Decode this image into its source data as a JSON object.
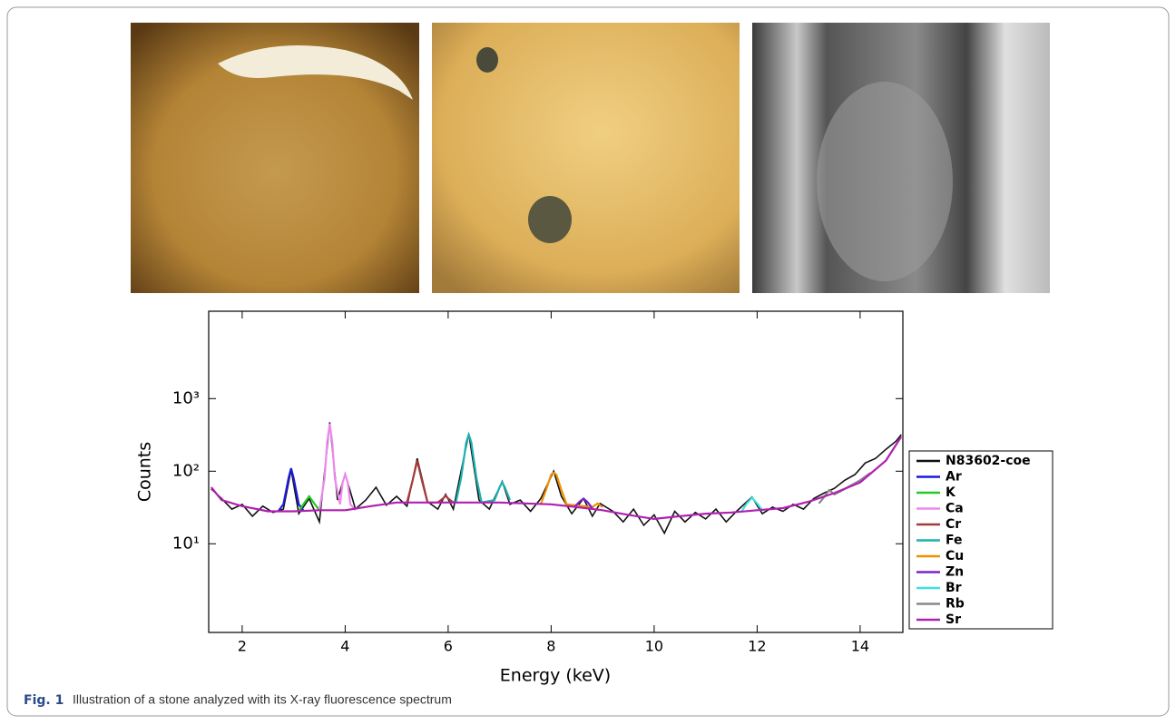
{
  "caption": {
    "label": "Fig. 1",
    "text": "Illustration of a stone analyzed with its X-ray fluorescence spectrum"
  },
  "chart_data": {
    "type": "line",
    "xlabel": "Energy (keV)",
    "ylabel": "Counts",
    "xlim": [
      1.35,
      14.83
    ],
    "xticks": [
      2,
      4,
      6,
      8,
      10,
      12,
      14
    ],
    "ylim": [
      0.6,
      16000
    ],
    "ylog": true,
    "yticks": [
      {
        "value": 10,
        "label": "10¹"
      },
      {
        "value": 100,
        "label": "10²"
      },
      {
        "value": 1000,
        "label": "10³"
      }
    ],
    "legend": "right",
    "series": [
      {
        "name": "N83602-coe",
        "color": "#111111",
        "x": [
          1.4,
          1.6,
          1.8,
          2.0,
          2.2,
          2.4,
          2.6,
          2.8,
          2.95,
          3.1,
          3.3,
          3.5,
          3.7,
          3.85,
          4.0,
          4.2,
          4.4,
          4.6,
          4.8,
          5.0,
          5.2,
          5.4,
          5.6,
          5.8,
          5.95,
          6.1,
          6.4,
          6.6,
          6.8,
          7.05,
          7.2,
          7.4,
          7.6,
          7.8,
          8.05,
          8.2,
          8.4,
          8.63,
          8.8,
          8.95,
          9.2,
          9.4,
          9.6,
          9.8,
          10.0,
          10.2,
          10.4,
          10.6,
          10.8,
          11.0,
          11.2,
          11.4,
          11.6,
          11.9,
          12.1,
          12.3,
          12.5,
          12.7,
          12.9,
          13.1,
          13.3,
          13.5,
          13.7,
          13.9,
          14.1,
          14.3,
          14.5,
          14.7,
          14.8
        ],
        "values": [
          57,
          42,
          30,
          35,
          24,
          33,
          27,
          30,
          105,
          26,
          42,
          20,
          470,
          40,
          92,
          30,
          40,
          60,
          34,
          45,
          33,
          150,
          38,
          30,
          48,
          30,
          330,
          40,
          30,
          72,
          35,
          40,
          28,
          42,
          100,
          45,
          26,
          42,
          24,
          36,
          28,
          20,
          30,
          18,
          25,
          14,
          28,
          20,
          27,
          22,
          30,
          20,
          28,
          44,
          26,
          32,
          28,
          35,
          30,
          42,
          50,
          58,
          75,
          90,
          130,
          150,
          200,
          260,
          320
        ]
      },
      {
        "name": "Ar",
        "color": "#1c1cd8",
        "x": [
          2.7,
          2.8,
          2.9,
          2.95,
          3.0,
          3.1,
          3.2
        ],
        "values": [
          28,
          35,
          80,
          110,
          80,
          35,
          28
        ]
      },
      {
        "name": "K",
        "color": "#22cc22",
        "x": [
          3.1,
          3.2,
          3.3,
          3.4,
          3.5
        ],
        "values": [
          28,
          36,
          45,
          36,
          29
        ]
      },
      {
        "name": "Ca",
        "color": "#ee88ee",
        "x": [
          3.5,
          3.6,
          3.65,
          3.7,
          3.75,
          3.8,
          3.9,
          3.95,
          4.0,
          4.05,
          4.1,
          4.2
        ],
        "values": [
          29,
          80,
          250,
          450,
          250,
          80,
          35,
          70,
          90,
          70,
          35,
          29
        ]
      },
      {
        "name": "Cr",
        "color": "#a63a3a",
        "x": [
          5.2,
          5.3,
          5.4,
          5.5,
          5.6,
          5.8,
          5.9,
          5.95,
          6.0,
          6.1
        ],
        "values": [
          37,
          70,
          140,
          70,
          37,
          37,
          42,
          46,
          42,
          37
        ]
      },
      {
        "name": "Fe",
        "color": "#1fb0b0",
        "x": [
          6.15,
          6.25,
          6.35,
          6.4,
          6.45,
          6.55,
          6.65,
          6.9,
          7.0,
          7.05,
          7.1,
          7.2
        ],
        "values": [
          37,
          80,
          250,
          320,
          250,
          80,
          37,
          40,
          60,
          70,
          60,
          40
        ]
      },
      {
        "name": "Cu",
        "color": "#f09000",
        "x": [
          7.8,
          7.9,
          8.0,
          8.05,
          8.1,
          8.2,
          8.3,
          8.8,
          8.9,
          9.0
        ],
        "values": [
          35,
          55,
          90,
          95,
          90,
          55,
          35,
          32,
          36,
          32
        ]
      },
      {
        "name": "Zn",
        "color": "#7a22d0",
        "x": [
          8.45,
          8.55,
          8.63,
          8.7,
          8.8
        ],
        "values": [
          32,
          38,
          42,
          38,
          31
        ]
      },
      {
        "name": "Br",
        "color": "#40e0e0",
        "x": [
          11.7,
          11.8,
          11.9,
          12.0,
          12.1
        ],
        "values": [
          28,
          36,
          43,
          36,
          29
        ]
      },
      {
        "name": "Rb",
        "color": "#888888",
        "x": [
          13.2,
          13.3,
          13.4,
          13.5,
          13.6,
          14.0,
          14.2
        ],
        "values": [
          36,
          44,
          55,
          48,
          52,
          75,
          95
        ]
      },
      {
        "name": "Sr",
        "color": "#b020b0",
        "x": [
          1.4,
          1.6,
          2.0,
          2.5,
          3.0,
          3.5,
          4.0,
          4.5,
          5.0,
          6.0,
          7.0,
          7.5,
          8.0,
          8.5,
          9.0,
          9.5,
          10.0,
          10.5,
          11.0,
          11.5,
          12.0,
          12.5,
          13.0,
          13.5,
          14.0,
          14.5,
          14.8
        ],
        "values": [
          60,
          40,
          33,
          28,
          28,
          29,
          29,
          33,
          37,
          37,
          37,
          36,
          35,
          32,
          29,
          25,
          22,
          24,
          26,
          27,
          29,
          31,
          38,
          50,
          70,
          140,
          300
        ]
      }
    ]
  }
}
